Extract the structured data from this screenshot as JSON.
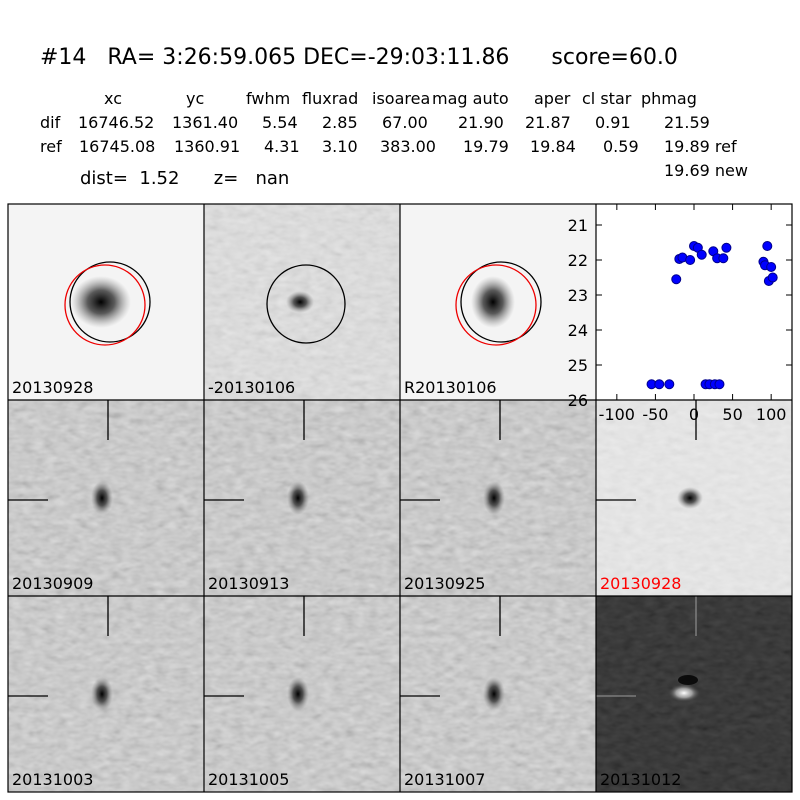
{
  "header": {
    "title": "#14   RA= 3:26:59.065 DEC=-29:03:11.86      score=60.0"
  },
  "table": {
    "columns": [
      "xc",
      "yc",
      "fwhm",
      "fluxrad",
      "isoarea",
      "mag auto",
      "aper",
      "cl star",
      "phmag"
    ],
    "rows": [
      [
        "dif",
        "16746.52",
        "1361.40",
        "5.54",
        "2.85",
        "67.00",
        "21.90",
        "21.87",
        "0.91",
        "21.59"
      ],
      [
        "ref",
        "16745.08",
        "1360.91",
        "4.31",
        "3.10",
        "383.00",
        "19.79",
        "19.84",
        "0.59",
        "19.89 ref"
      ]
    ],
    "extra": "19.69 new"
  },
  "distance": "dist=  1.52      z=   nan",
  "panels": [
    "20130928",
    "-20130106",
    "R20130106",
    "20130909",
    "20130913",
    "20130925",
    "20130928",
    "20131003",
    "20131005",
    "20131007",
    "20131012"
  ],
  "chart_data": {
    "type": "scatter",
    "color": "#0000ff",
    "x": [
      -55,
      -45,
      -32,
      -23,
      -19,
      -15,
      -5,
      0,
      5,
      10,
      15,
      20,
      25,
      27,
      30,
      33,
      38,
      42,
      90,
      92,
      95,
      97,
      100,
      102
    ],
    "values": [
      25.55,
      25.55,
      25.55,
      22.55,
      21.97,
      21.93,
      22.0,
      21.6,
      21.65,
      21.85,
      25.55,
      25.55,
      21.75,
      25.55,
      21.95,
      25.55,
      21.95,
      21.65,
      22.05,
      22.15,
      21.6,
      22.6,
      22.2,
      22.5
    ],
    "xlim": [
      -127,
      127
    ],
    "ylim": [
      26,
      20.4
    ],
    "xticks": [
      -100,
      -50,
      0,
      50,
      100
    ],
    "yticks": [
      21,
      22,
      23,
      24,
      25,
      26
    ]
  }
}
